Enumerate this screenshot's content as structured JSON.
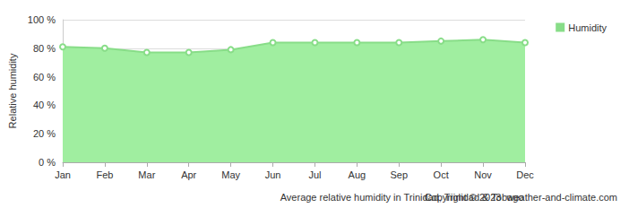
{
  "chart_data": {
    "type": "line",
    "title": "Average relative humidity in Trinidad, Trinidad & Tobago",
    "subtitle": "Copyright © 2023  weather-and-climate.com",
    "ylabel": "Relative humidity",
    "categories": [
      "Jan",
      "Feb",
      "Mar",
      "Apr",
      "May",
      "Jun",
      "Jul",
      "Aug",
      "Sep",
      "Oct",
      "Nov",
      "Dec"
    ],
    "series": [
      {
        "name": "Humidity",
        "color": "#88dd88",
        "values": [
          81,
          80,
          77,
          77,
          79,
          84,
          84,
          84,
          84,
          85,
          86,
          84
        ]
      }
    ],
    "ylim": [
      0,
      100
    ],
    "yticks": [
      {
        "value": 0,
        "label": "0 %"
      },
      {
        "value": 20,
        "label": "20 %"
      },
      {
        "value": 40,
        "label": "40 %"
      },
      {
        "value": 60,
        "label": "60 %"
      },
      {
        "value": 80,
        "label": "80 %"
      },
      {
        "value": 100,
        "label": "100 %"
      }
    ],
    "grid": true,
    "legend": "right",
    "marker": "circle"
  }
}
